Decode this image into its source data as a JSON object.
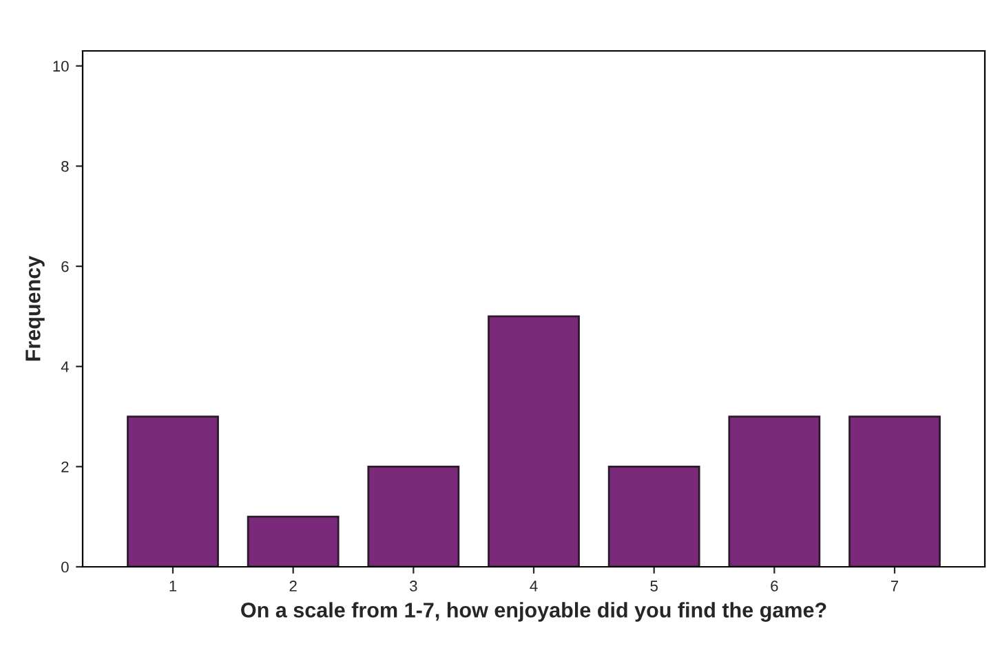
{
  "chart_data": {
    "type": "bar",
    "xlabel": "On a scale from 1-7, how enjoyable did you find the game?",
    "ylabel": "Frequency",
    "categories": [
      "1",
      "2",
      "3",
      "4",
      "5",
      "6",
      "7"
    ],
    "values": [
      3,
      1,
      2,
      5,
      2,
      3,
      3
    ],
    "color": "#7b2a7b",
    "ylim": [
      0,
      10.3
    ],
    "yticks": [
      0,
      2,
      4,
      6,
      8,
      10
    ],
    "grid": false
  }
}
